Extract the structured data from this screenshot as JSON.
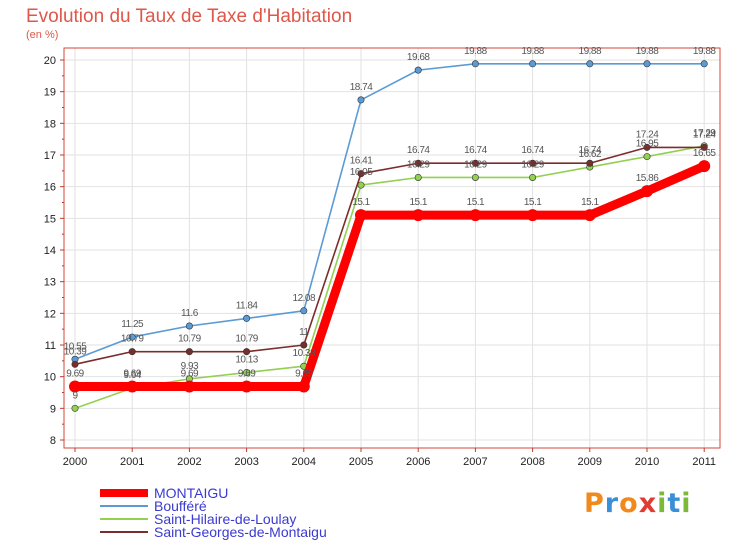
{
  "title": "Evolution du Taux de Taxe d'Habitation",
  "subtitle": "(en %)",
  "colors": {
    "frame": "#d24a3a",
    "grid": "#e2e2e2",
    "ticks": "#c0392b",
    "axis_text": "#222222"
  },
  "logo": {
    "text": "Proxiti",
    "letters": [
      {
        "ch": "P",
        "color": "#f08a1c"
      },
      {
        "ch": "r",
        "color": "#3a8fd6"
      },
      {
        "ch": "o",
        "color": "#f08a1c"
      },
      {
        "ch": "x",
        "color": "#e23b2f"
      },
      {
        "ch": "i",
        "color": "#7cb83a"
      },
      {
        "ch": "t",
        "color": "#3a8fd6"
      },
      {
        "ch": "i",
        "color": "#7cb83a"
      }
    ]
  },
  "chart_data": {
    "type": "line",
    "title": "Evolution du Taux de Taxe d'Habitation",
    "ylabel": "(en %)",
    "xlabel": "",
    "x": [
      "2000",
      "2001",
      "2002",
      "2003",
      "2004",
      "2005",
      "2006",
      "2007",
      "2008",
      "2009",
      "2010",
      "2011"
    ],
    "ylim": [
      8,
      20
    ],
    "yticks": [
      8,
      9,
      10,
      11,
      12,
      13,
      14,
      15,
      16,
      17,
      18,
      19,
      20
    ],
    "grid": true,
    "legend_position": "bottom-left",
    "series": [
      {
        "name": "MONTAIGU",
        "color": "#ff0000",
        "values": [
          9.69,
          9.69,
          9.69,
          9.69,
          9.69,
          15.1,
          15.1,
          15.1,
          15.1,
          15.1,
          15.86,
          16.65
        ],
        "labels": [
          "9.69",
          "9.69",
          "9.69",
          "9.69",
          "9.69",
          "15.1",
          "15.1",
          "15.1",
          "15.1",
          "15.1",
          "15.86",
          "16.65"
        ]
      },
      {
        "name": "Boufféré",
        "color": "#5b9bd5",
        "values": [
          10.55,
          11.25,
          11.6,
          11.84,
          12.08,
          18.74,
          19.68,
          19.88,
          19.88,
          19.88,
          19.88,
          19.88
        ],
        "labels": [
          "10.55",
          "11.25",
          "11.6",
          "11.84",
          "12.08",
          "18.74",
          "19.68",
          "19.88",
          "19.88",
          "19.88",
          "19.88",
          "19.88"
        ]
      },
      {
        "name": "Saint-Hilaire-de-Loulay",
        "color": "#92d050",
        "values": [
          9,
          9.64,
          9.93,
          10.13,
          10.33,
          16.05,
          16.29,
          16.29,
          16.29,
          16.62,
          16.95,
          17.29
        ],
        "labels": [
          "9",
          "9.64",
          "9.93",
          "10.13",
          "10.33",
          "16.05",
          "16.29",
          "16.29",
          "16.29",
          "16.62",
          "16.95",
          "17.29"
        ]
      },
      {
        "name": "Saint-Georges-de-Montaigu",
        "color": "#7b2c2c",
        "values": [
          10.39,
          10.79,
          10.79,
          10.79,
          11,
          16.41,
          16.74,
          16.74,
          16.74,
          16.74,
          17.24,
          17.24
        ],
        "labels": [
          "10.39",
          "10.79",
          "10.79",
          "10.79",
          "11",
          "16.41",
          "16.74",
          "16.74",
          "16.74",
          "16.74",
          "17.24",
          "17.24"
        ]
      }
    ]
  }
}
